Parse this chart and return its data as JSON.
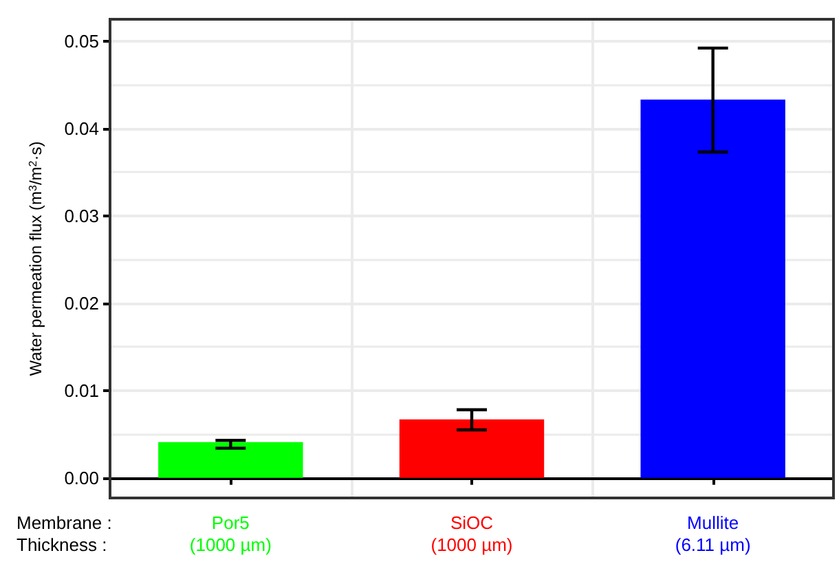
{
  "chart_data": {
    "type": "bar",
    "ylabel": "Water permeation flux (m$^{3}$/m$^{2}$·s)",
    "xlabel": "Membrane :\nThickness :",
    "categories": [
      "Por5\n(1000 µm)",
      "SiOC\n(1000 µm)",
      "Mullite\n(6.11 µm)"
    ],
    "values": [
      0.0041,
      0.0067,
      0.0433
    ],
    "colors": [
      "#00ff00",
      "#ff0000",
      "#0000ff"
    ],
    "errors": [
      [
        0.0034,
        0.0043
      ],
      [
        0.0055,
        0.0078
      ],
      [
        0.0373,
        0.0492
      ]
    ],
    "ylim": [
      -0.0023,
      0.0525
    ],
    "yticks": [
      {
        "value": 0,
        "label": "0.00"
      },
      0.01,
      0.02,
      0.03,
      0.04,
      0.05
    ],
    "grid": true
  }
}
